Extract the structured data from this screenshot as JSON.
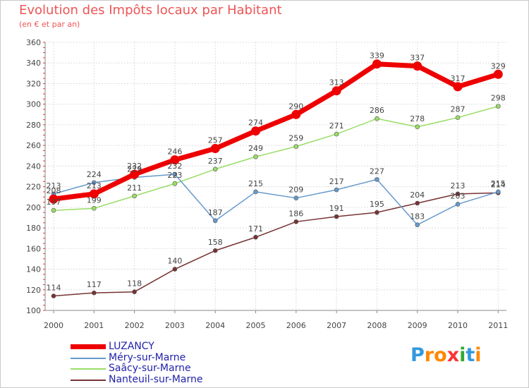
{
  "chart_data": {
    "type": "line",
    "title": "Evolution des Impôts locaux par Habitant",
    "subtitle": "(en € et par an)",
    "xlabel": "",
    "ylabel": "",
    "categories": [
      "2000",
      "2001",
      "2002",
      "2003",
      "2004",
      "2005",
      "2006",
      "2007",
      "2008",
      "2009",
      "2010",
      "2011"
    ],
    "ylim": [
      100,
      360
    ],
    "yticks": [
      100,
      120,
      140,
      160,
      180,
      200,
      220,
      240,
      260,
      280,
      300,
      320,
      340,
      360
    ],
    "grid": true,
    "legend_position": "bottom-left",
    "series": [
      {
        "name": "LUZANCY",
        "color": "#ee0000",
        "values": [
          208,
          213,
          232,
          246,
          257,
          274,
          290,
          313,
          339,
          337,
          317,
          329
        ]
      },
      {
        "name": "Méry-sur-Marne",
        "color": "#6699cc",
        "values": [
          213,
          224,
          229,
          232,
          187,
          215,
          209,
          217,
          227,
          183,
          203,
          215
        ]
      },
      {
        "name": "Saâcy-sur-Marne",
        "color": "#99dd66",
        "values": [
          197,
          199,
          211,
          223,
          237,
          249,
          259,
          271,
          286,
          278,
          287,
          298
        ]
      },
      {
        "name": "Nanteuil-sur-Marne",
        "color": "#773333",
        "values": [
          114,
          117,
          118,
          140,
          158,
          171,
          186,
          191,
          195,
          204,
          213,
          214
        ]
      }
    ]
  },
  "logo": {
    "text": "Proxiti",
    "letters": [
      "P",
      "r",
      "o",
      "x",
      "i",
      "t",
      "i"
    ],
    "colors": [
      "#3399dd",
      "#ff8800",
      "#ff8800",
      "#ff3333",
      "#33aa33",
      "#3399dd",
      "#ff8800"
    ]
  }
}
